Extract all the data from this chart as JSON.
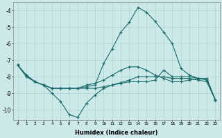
{
  "xlabel": "Humidex (Indice chaleur)",
  "ylabel": "",
  "bg_color": "#cce8e8",
  "grid_color": "#aad4d4",
  "line_color": "#1a6b6b",
  "xlim": [
    -0.5,
    23.5
  ],
  "ylim": [
    -10.6,
    -3.5
  ],
  "yticks": [
    -10,
    -9,
    -8,
    -7,
    -6,
    -5,
    -4
  ],
  "xticks": [
    0,
    1,
    2,
    3,
    4,
    5,
    6,
    7,
    8,
    9,
    10,
    11,
    12,
    13,
    14,
    15,
    16,
    17,
    18,
    19,
    20,
    21,
    22,
    23
  ],
  "line1_x": [
    0,
    1,
    2,
    3,
    4,
    5,
    6,
    7,
    8,
    9,
    10,
    11,
    12,
    13,
    14,
    15,
    16,
    17,
    18,
    19,
    20,
    21,
    22,
    23
  ],
  "line1_y": [
    -7.3,
    -7.9,
    -8.3,
    -8.5,
    -8.7,
    -8.7,
    -8.7,
    -8.7,
    -8.7,
    -8.7,
    -8.6,
    -8.5,
    -8.4,
    -8.3,
    -8.3,
    -8.3,
    -8.2,
    -7.6,
    -8.0,
    -8.0,
    -8.0,
    -8.1,
    -8.1,
    -9.4
  ],
  "line2_x": [
    0,
    1,
    2,
    3,
    4,
    5,
    6,
    7,
    8,
    9,
    10,
    11,
    12,
    13,
    14,
    15,
    16,
    17,
    18,
    19,
    20,
    21,
    22,
    23
  ],
  "line2_y": [
    -7.3,
    -8.0,
    -8.3,
    -8.5,
    -9.0,
    -9.5,
    -10.3,
    -10.45,
    -9.6,
    -9.1,
    -8.7,
    -8.5,
    -8.35,
    -8.2,
    -8.0,
    -8.0,
    -8.0,
    -8.0,
    -8.1,
    -8.1,
    -8.1,
    -8.2,
    -8.3,
    -9.4
  ],
  "line3_x": [
    0,
    1,
    2,
    3,
    4,
    5,
    6,
    7,
    8,
    9,
    10,
    11,
    12,
    13,
    14,
    15,
    16,
    17,
    18,
    19,
    20,
    21,
    22,
    23
  ],
  "line3_y": [
    -7.3,
    -7.9,
    -8.3,
    -8.5,
    -8.7,
    -8.7,
    -8.7,
    -8.7,
    -8.6,
    -8.5,
    -7.2,
    -6.3,
    -5.3,
    -4.7,
    -3.8,
    -4.1,
    -4.65,
    -5.3,
    -6.0,
    -7.5,
    -7.9,
    -8.1,
    -8.1,
    -9.4
  ],
  "line4_x": [
    0,
    1,
    2,
    3,
    4,
    5,
    6,
    7,
    8,
    9,
    10,
    11,
    12,
    13,
    14,
    15,
    16,
    17,
    18,
    19,
    20,
    21,
    22,
    23
  ],
  "line4_y": [
    -7.3,
    -7.9,
    -8.3,
    -8.5,
    -8.7,
    -8.7,
    -8.7,
    -8.7,
    -8.5,
    -8.4,
    -8.2,
    -7.9,
    -7.6,
    -7.4,
    -7.4,
    -7.6,
    -7.9,
    -8.1,
    -8.3,
    -8.3,
    -8.2,
    -8.1,
    -8.2,
    -9.4
  ]
}
